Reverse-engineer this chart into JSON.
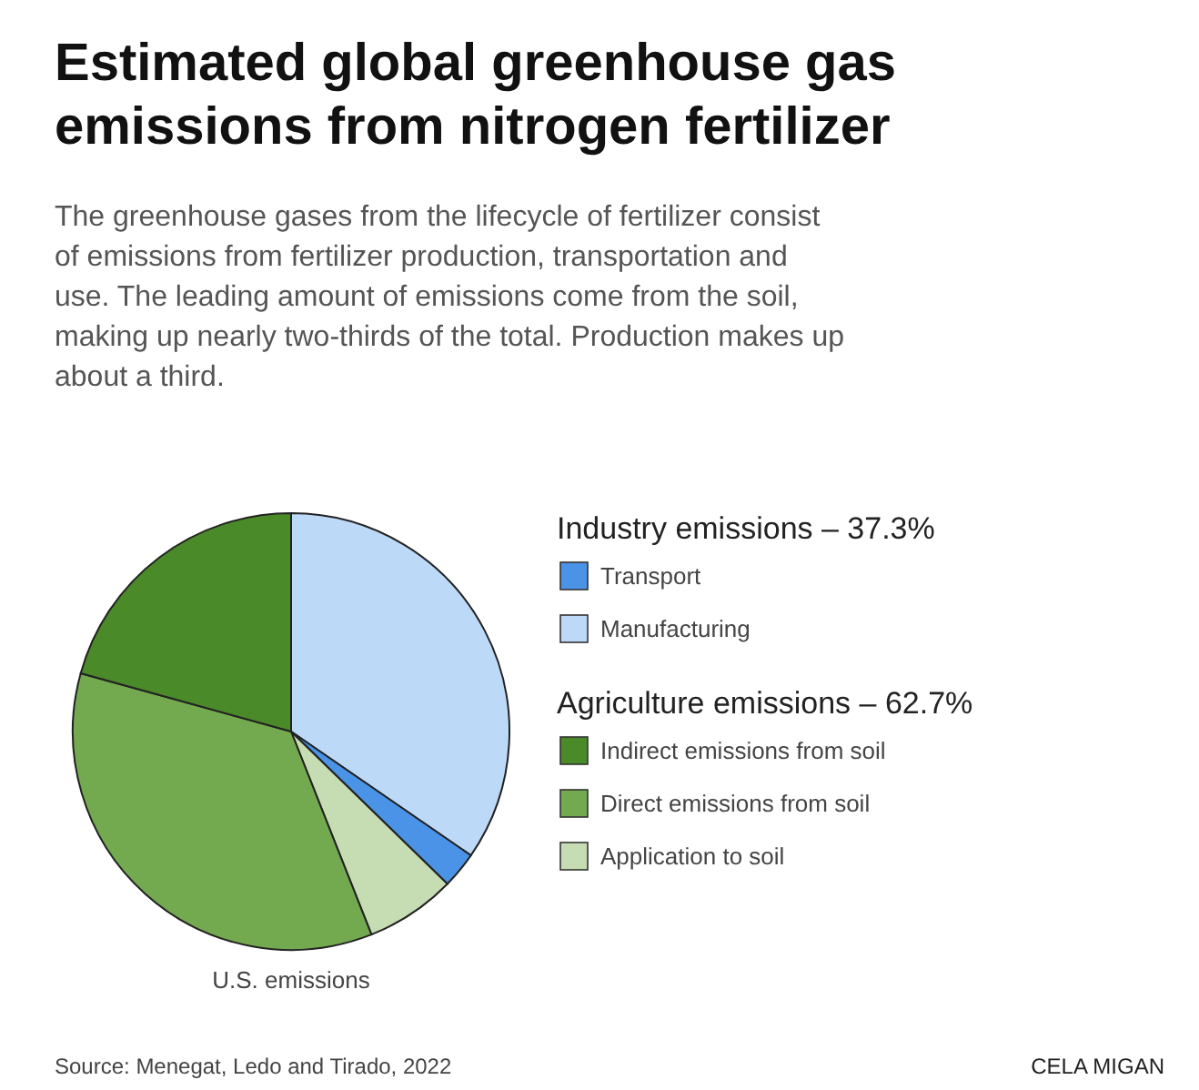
{
  "chart_data": {
    "type": "pie",
    "title": "Estimated global greenhouse gas emissions from nitrogen fertilizer",
    "subtitle": "The greenhouse gases from the lifecycle of fertilizer consist of emissions from fertilizer production, transportation and use. The leading amount of emissions come from the soil, making up nearly two-thirds of the total. Production makes up about a third.",
    "categories": [
      "Manufacturing",
      "Transport",
      "Application to soil",
      "Direct emissions from soil",
      "Indirect emissions from soil"
    ],
    "values": [
      34.6,
      2.7,
      6.7,
      35.3,
      20.7
    ],
    "colors": [
      "#bdd9f8",
      "#4a93e6",
      "#c6dcb2",
      "#73a94f",
      "#4a8a28"
    ],
    "legend": "right",
    "annotations": [
      "Industry emissions – 37.3%",
      "Agriculture emissions – 62.7%",
      "U.S. emissions",
      "Source: Menegat, Ledo and Tirado, 2022",
      "CELA MIGAN"
    ]
  }
}
